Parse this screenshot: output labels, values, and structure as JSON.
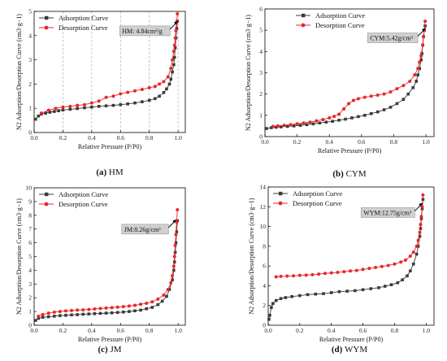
{
  "colors": {
    "adsorption": "#3a3a3a",
    "desorption": "#e8262b",
    "grid": "#b0b0b0",
    "annotation_box": "#d0d0d0"
  },
  "chart_data": [
    {
      "type": "line",
      "panel_letter": "(a)",
      "panel_name": "HM",
      "xlabel": "Relative Pressure (P/P0)",
      "ylabel": "N2 Adsorption/Desorption Curve (cm3·g−1)",
      "xlim": [
        0,
        1.05
      ],
      "ylim": [
        0,
        5
      ],
      "xticks": [
        "0.0",
        "0.2",
        "0.4",
        "0.6",
        "0.8",
        "1.0"
      ],
      "yticks": [
        "0",
        "1",
        "2",
        "3",
        "4",
        "5"
      ],
      "grid": "vertical-dashed",
      "legend_position": "top-left",
      "annotation": {
        "text": "HM: 4.84cm³/g",
        "x": 1.0,
        "y": 4.6
      },
      "series": [
        {
          "name": "Adsorption Curve",
          "marker": "square",
          "x": [
            0.01,
            0.03,
            0.05,
            0.08,
            0.11,
            0.14,
            0.17,
            0.2,
            0.25,
            0.3,
            0.35,
            0.4,
            0.45,
            0.5,
            0.55,
            0.6,
            0.65,
            0.7,
            0.75,
            0.8,
            0.84,
            0.87,
            0.9,
            0.92,
            0.94,
            0.95,
            0.96,
            0.97,
            0.975,
            0.98,
            0.985,
            0.99,
            0.995
          ],
          "y": [
            0.55,
            0.68,
            0.76,
            0.8,
            0.84,
            0.87,
            0.9,
            0.93,
            0.96,
            0.99,
            1.02,
            1.05,
            1.08,
            1.1,
            1.12,
            1.15,
            1.18,
            1.22,
            1.27,
            1.33,
            1.4,
            1.5,
            1.65,
            1.8,
            2.0,
            2.2,
            2.5,
            2.8,
            3.1,
            3.5,
            3.9,
            4.3,
            4.6
          ]
        },
        {
          "name": "Desorption Curve",
          "marker": "circle",
          "x": [
            0.995,
            0.99,
            0.985,
            0.98,
            0.975,
            0.97,
            0.96,
            0.95,
            0.93,
            0.9,
            0.87,
            0.84,
            0.8,
            0.75,
            0.7,
            0.65,
            0.6,
            0.55,
            0.5,
            0.45,
            0.4,
            0.35,
            0.3,
            0.25,
            0.2,
            0.15,
            0.1,
            0.05
          ],
          "y": [
            4.9,
            4.55,
            4.2,
            3.9,
            3.6,
            3.35,
            3.0,
            2.65,
            2.3,
            2.1,
            2.0,
            1.9,
            1.85,
            1.78,
            1.72,
            1.66,
            1.6,
            1.5,
            1.45,
            1.3,
            1.22,
            1.15,
            1.12,
            1.08,
            1.05,
            1.0,
            0.92,
            0.8
          ]
        }
      ]
    },
    {
      "type": "line",
      "panel_letter": "(b)",
      "panel_name": "CYM",
      "xlabel": "Relative Pressure (P/P0)",
      "ylabel": "N2 Adsorption/Desorption Curve (cm3·g−1)",
      "xlim": [
        0,
        1.05
      ],
      "ylim": [
        0,
        6
      ],
      "xticks": [
        "0.0",
        "0.2",
        "0.4",
        "0.6",
        "0.8",
        "1.0"
      ],
      "yticks": [
        "0",
        "1",
        "2",
        "3",
        "4",
        "5",
        "6"
      ],
      "grid": "none",
      "legend_position": "top-center",
      "annotation": {
        "text": "CYM:5.42g/cm³",
        "x": 1.0,
        "y": 5.1
      },
      "series": [
        {
          "name": "Adsorption Curve",
          "marker": "square",
          "x": [
            0.01,
            0.04,
            0.07,
            0.1,
            0.14,
            0.18,
            0.22,
            0.26,
            0.3,
            0.34,
            0.38,
            0.42,
            0.46,
            0.5,
            0.54,
            0.58,
            0.62,
            0.66,
            0.7,
            0.74,
            0.78,
            0.82,
            0.86,
            0.89,
            0.92,
            0.94,
            0.95,
            0.96,
            0.97,
            0.975,
            0.98,
            0.985,
            0.99,
            0.995
          ],
          "y": [
            0.38,
            0.42,
            0.44,
            0.46,
            0.48,
            0.5,
            0.53,
            0.56,
            0.6,
            0.64,
            0.68,
            0.72,
            0.77,
            0.82,
            0.88,
            0.94,
            1.0,
            1.08,
            1.16,
            1.26,
            1.38,
            1.55,
            1.75,
            2.0,
            2.3,
            2.6,
            2.9,
            3.2,
            3.6,
            3.9,
            4.3,
            4.7,
            5.0,
            5.2
          ]
        },
        {
          "name": "Desorption Curve",
          "marker": "circle",
          "x": [
            0.995,
            0.99,
            0.985,
            0.98,
            0.97,
            0.96,
            0.95,
            0.93,
            0.9,
            0.86,
            0.82,
            0.78,
            0.74,
            0.7,
            0.66,
            0.62,
            0.58,
            0.55,
            0.52,
            0.49,
            0.46,
            0.43,
            0.4,
            0.36,
            0.32,
            0.28,
            0.24,
            0.2,
            0.16,
            0.12,
            0.08,
            0.05
          ],
          "y": [
            5.42,
            5.0,
            4.7,
            4.3,
            3.8,
            3.5,
            3.2,
            2.9,
            2.6,
            2.4,
            2.25,
            2.1,
            2.0,
            1.95,
            1.9,
            1.85,
            1.78,
            1.7,
            1.55,
            1.3,
            1.05,
            0.95,
            0.88,
            0.8,
            0.74,
            0.68,
            0.64,
            0.6,
            0.56,
            0.53,
            0.5,
            0.48
          ]
        }
      ]
    },
    {
      "type": "line",
      "panel_letter": "(c)",
      "panel_name": "JM",
      "xlabel": "Relative Pressure (P/P0)",
      "ylabel": "N2 Adsorption/Desorption Curve (cm3·g−1)",
      "xlim": [
        0,
        1.05
      ],
      "ylim": [
        0,
        10
      ],
      "xticks": [
        "0.0",
        "0.2",
        "0.4",
        "0.6",
        "0.8",
        "1.0"
      ],
      "yticks": [
        "0",
        "1",
        "2",
        "3",
        "4",
        "5",
        "6",
        "7",
        "8",
        "9",
        "10"
      ],
      "grid": "none",
      "legend_position": "top-left",
      "annotation": {
        "text": "JM:8.26g/cm³",
        "x": 0.99,
        "y": 7.7
      },
      "series": [
        {
          "name": "Adsorption Curve",
          "marker": "square",
          "x": [
            0.01,
            0.03,
            0.06,
            0.1,
            0.14,
            0.18,
            0.22,
            0.26,
            0.3,
            0.34,
            0.38,
            0.42,
            0.46,
            0.5,
            0.54,
            0.58,
            0.62,
            0.66,
            0.7,
            0.74,
            0.78,
            0.82,
            0.86,
            0.89,
            0.92,
            0.94,
            0.96,
            0.97,
            0.975,
            0.98,
            0.985,
            0.99,
            0.995
          ],
          "y": [
            0.35,
            0.5,
            0.58,
            0.62,
            0.66,
            0.7,
            0.72,
            0.75,
            0.77,
            0.8,
            0.82,
            0.84,
            0.86,
            0.88,
            0.9,
            0.93,
            0.96,
            1.0,
            1.05,
            1.1,
            1.2,
            1.3,
            1.5,
            1.75,
            2.1,
            2.6,
            3.3,
            4.0,
            4.6,
            5.3,
            6.0,
            6.8,
            7.6
          ]
        },
        {
          "name": "Desorption Curve",
          "marker": "circle",
          "x": [
            0.995,
            0.99,
            0.985,
            0.98,
            0.975,
            0.97,
            0.96,
            0.95,
            0.93,
            0.9,
            0.86,
            0.82,
            0.78,
            0.74,
            0.7,
            0.66,
            0.62,
            0.58,
            0.54,
            0.5,
            0.46,
            0.42,
            0.38,
            0.34,
            0.3,
            0.26,
            0.22,
            0.18,
            0.14,
            0.1,
            0.06,
            0.03
          ],
          "y": [
            8.4,
            7.5,
            6.6,
            5.8,
            5.0,
            4.3,
            3.6,
            3.1,
            2.6,
            2.2,
            1.9,
            1.7,
            1.6,
            1.52,
            1.45,
            1.4,
            1.35,
            1.32,
            1.28,
            1.25,
            1.22,
            1.18,
            1.15,
            1.12,
            1.1,
            1.07,
            1.04,
            1.0,
            0.95,
            0.88,
            0.78,
            0.65
          ]
        }
      ]
    },
    {
      "type": "line",
      "panel_letter": "(d)",
      "panel_name": "WYM",
      "xlabel": "Relative Pressure (P/P0)",
      "ylabel": "N2 Adsorption/Desorption Curve (cm3·g−1)",
      "xlim": [
        0,
        1.05
      ],
      "ylim": [
        0,
        14
      ],
      "xticks": [
        "0.0",
        "0.2",
        "0.4",
        "0.6",
        "0.8",
        "1.0"
      ],
      "yticks": [
        "0",
        "2",
        "4",
        "6",
        "8",
        "10",
        "12",
        "14"
      ],
      "grid": "none",
      "legend_position": "top-left",
      "annotation": {
        "text": "WYM:12.75g/cm³",
        "x": 0.98,
        "y": 12.4
      },
      "series": [
        {
          "name": "Adsorption Curve",
          "marker": "square",
          "x": [
            0.005,
            0.01,
            0.02,
            0.03,
            0.05,
            0.08,
            0.11,
            0.15,
            0.2,
            0.25,
            0.3,
            0.35,
            0.4,
            0.45,
            0.5,
            0.55,
            0.6,
            0.65,
            0.7,
            0.74,
            0.78,
            0.82,
            0.85,
            0.88,
            0.9,
            0.92,
            0.94,
            0.95,
            0.96,
            0.965,
            0.97,
            0.975,
            0.98
          ],
          "y": [
            0.6,
            1.0,
            1.8,
            2.2,
            2.5,
            2.7,
            2.8,
            2.9,
            3.0,
            3.1,
            3.15,
            3.2,
            3.3,
            3.4,
            3.45,
            3.5,
            3.6,
            3.7,
            3.8,
            3.95,
            4.1,
            4.3,
            4.6,
            5.0,
            5.5,
            6.2,
            7.2,
            8.0,
            9.0,
            9.8,
            10.8,
            11.8,
            12.75
          ]
        },
        {
          "name": "Desorption Curve",
          "marker": "circle",
          "x": [
            0.98,
            0.975,
            0.97,
            0.965,
            0.96,
            0.95,
            0.94,
            0.92,
            0.9,
            0.87,
            0.84,
            0.8,
            0.76,
            0.72,
            0.68,
            0.64,
            0.6,
            0.56,
            0.52,
            0.48,
            0.44,
            0.4,
            0.36,
            0.32,
            0.28,
            0.24,
            0.2,
            0.16,
            0.12,
            0.08,
            0.05
          ],
          "y": [
            13.2,
            12.0,
            11.0,
            10.2,
            9.4,
            8.6,
            8.0,
            7.4,
            7.0,
            6.6,
            6.4,
            6.2,
            6.05,
            5.95,
            5.85,
            5.75,
            5.65,
            5.55,
            5.5,
            5.42,
            5.35,
            5.3,
            5.25,
            5.18,
            5.12,
            5.08,
            5.05,
            5.0,
            4.98,
            4.95,
            4.9
          ]
        }
      ]
    }
  ]
}
